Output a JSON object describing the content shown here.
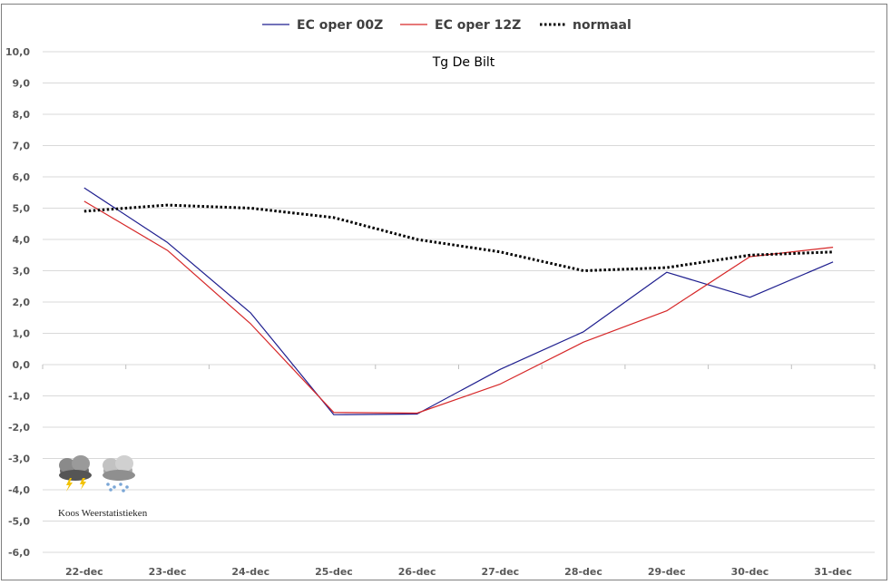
{
  "chart_data": {
    "type": "line",
    "title": "Tg De Bilt",
    "xlabel": "",
    "ylabel": "",
    "categories": [
      "22-dec",
      "23-dec",
      "24-dec",
      "25-dec",
      "26-dec",
      "27-dec",
      "28-dec",
      "29-dec",
      "30-dec",
      "31-dec"
    ],
    "ylim": [
      -6,
      10
    ],
    "yticks": [
      "10,0",
      "9,0",
      "8,0",
      "7,0",
      "6,0",
      "5,0",
      "4,0",
      "3,0",
      "2,0",
      "1,0",
      "0,0",
      "-1,0",
      "-2,0",
      "-3,0",
      "-4,0",
      "-5,0",
      "-6,0"
    ],
    "grid": true,
    "legend_position": "top",
    "series": [
      {
        "name": "EC oper 00Z",
        "color": "#1f1f8f",
        "style": "solid",
        "values": [
          5.65,
          3.9,
          1.65,
          -1.6,
          -1.58,
          -0.15,
          1.05,
          2.95,
          2.15,
          3.28
        ]
      },
      {
        "name": "EC oper 12Z",
        "color": "#d62728",
        "style": "solid",
        "values": [
          5.22,
          3.65,
          1.3,
          -1.53,
          -1.55,
          -0.62,
          0.72,
          1.72,
          3.45,
          3.75
        ]
      },
      {
        "name": "normaal",
        "color": "#000000",
        "style": "dotted",
        "values": [
          4.9,
          5.1,
          5.0,
          4.7,
          4.0,
          3.6,
          3.0,
          3.1,
          3.5,
          3.6
        ]
      }
    ]
  },
  "logo": {
    "text": "Koos Weerstatistieken",
    "icons": [
      "thunderstorm-cloud-icon",
      "snow-cloud-icon"
    ]
  }
}
